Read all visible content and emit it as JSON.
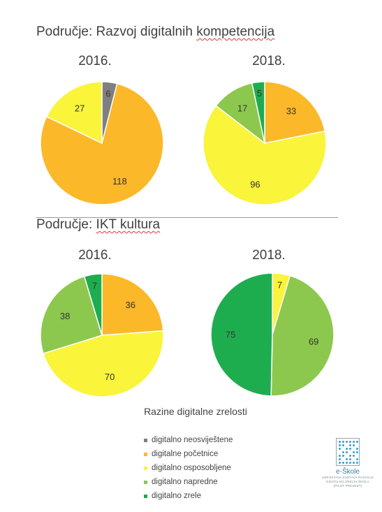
{
  "colors": {
    "digitalno neosviještene": "#7f7f7f",
    "digitalne početnice": "#fbb829",
    "digitalno osposobljene": "#faf43a",
    "digitalno napredne": "#8dc84e",
    "digitalno zrele": "#1ead4e"
  },
  "sections": [
    {
      "title_prefix": "Područje: Razvoj digitalnih ",
      "title_squiggle": "kompetencija"
    },
    {
      "title_prefix": "Područje: ",
      "title_squiggle": "IKT kultura"
    }
  ],
  "chart_data": [
    {
      "type": "pie",
      "title": "2016.",
      "slices": [
        {
          "label": "digitalno neosviještene",
          "value": 6
        },
        {
          "label": "digitalne početnice",
          "value": 118
        },
        {
          "label": "digitalno osposobljene",
          "value": 27
        }
      ]
    },
    {
      "type": "pie",
      "title": "2018.",
      "slices": [
        {
          "label": "digitalne početnice",
          "value": 33
        },
        {
          "label": "digitalno osposobljene",
          "value": 96
        },
        {
          "label": "digitalno napredne",
          "value": 17
        },
        {
          "label": "digitalno zrele",
          "value": 5
        }
      ]
    },
    {
      "type": "pie",
      "title": "2016.",
      "slices": [
        {
          "label": "digitalne početnice",
          "value": 36
        },
        {
          "label": "digitalno osposobljene",
          "value": 70
        },
        {
          "label": "digitalno napredne",
          "value": 38
        },
        {
          "label": "digitalno zrele",
          "value": 7
        }
      ]
    },
    {
      "type": "pie",
      "title": "2018.",
      "slices": [
        {
          "label": "digitalno osposobljene",
          "value": 7
        },
        {
          "label": "digitalno napredne",
          "value": 69
        },
        {
          "label": "digitalno zrele",
          "value": 75
        }
      ]
    }
  ],
  "legend": {
    "title": "Razine digitalne zrelosti",
    "items": [
      "digitalno neosviještene",
      "digitalne početnice",
      "digitalno osposobljene",
      "digitalno napredne",
      "digitalno zrele"
    ]
  },
  "logo": {
    "icon": "e-skole-logo-icon",
    "name": "e-Škole",
    "subtitle": [
      "USPOSTAVA SUSTAVA RAZVOJA",
      "DIGITALNO ZRELIH ŠKOLA",
      "(PILOT PROJEKT)"
    ]
  }
}
